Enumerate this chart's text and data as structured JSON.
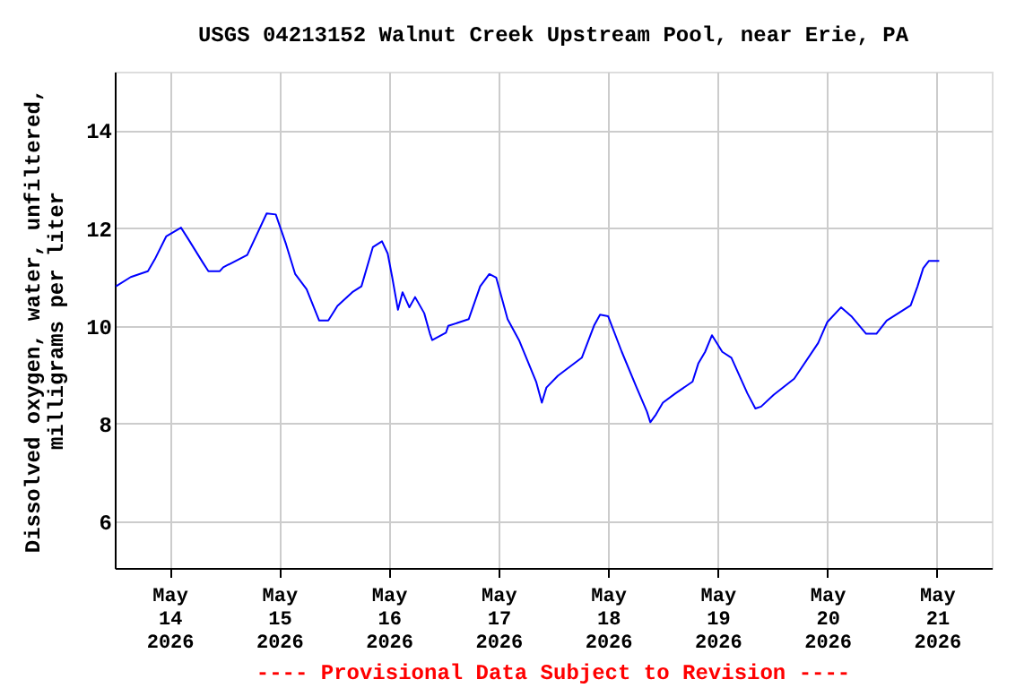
{
  "chart_data": {
    "type": "line",
    "title": "USGS 04213152 Walnut Creek Upstream Pool, near Erie, PA",
    "ylabel": "Dissolved oxygen, water, unfiltered,\nmilligrams per liter",
    "x": [
      "2026-05-13T12:15",
      "2026-05-13T15:30",
      "2026-05-13T19:15",
      "2026-05-13T20:45",
      "2026-05-13T23:15",
      "2026-05-14T02:30",
      "2026-05-14T04:00",
      "2026-05-14T07:15",
      "2026-05-14T08:30",
      "2026-05-14T11:00",
      "2026-05-14T11:45",
      "2026-05-14T17:00",
      "2026-05-14T21:15",
      "2026-05-14T23:15",
      "2026-05-15T01:30",
      "2026-05-15T03:30",
      "2026-05-15T06:00",
      "2026-05-15T08:45",
      "2026-05-15T10:45",
      "2026-05-15T12:45",
      "2026-05-15T16:00",
      "2026-05-15T18:00",
      "2026-05-15T20:30",
      "2026-05-15T22:30",
      "2026-05-15T23:45",
      "2026-05-16T00:45",
      "2026-05-16T02:00",
      "2026-05-16T03:00",
      "2026-05-16T04:30",
      "2026-05-16T05:45",
      "2026-05-16T07:45",
      "2026-05-16T09:00",
      "2026-05-16T09:30",
      "2026-05-16T12:30",
      "2026-05-16T13:00",
      "2026-05-16T17:30",
      "2026-05-16T20:00",
      "2026-05-16T22:00",
      "2026-05-16T23:30",
      "2026-05-17T02:00",
      "2026-05-17T04:30",
      "2026-05-17T08:15",
      "2026-05-17T09:30",
      "2026-05-17T10:30",
      "2026-05-17T13:00",
      "2026-05-17T18:15",
      "2026-05-17T21:00",
      "2026-05-17T22:15",
      "2026-05-18T00:00",
      "2026-05-18T03:00",
      "2026-05-18T06:15",
      "2026-05-18T08:30",
      "2026-05-18T09:15",
      "2026-05-18T10:30",
      "2026-05-18T12:00",
      "2026-05-18T14:45",
      "2026-05-18T18:30",
      "2026-05-18T19:45",
      "2026-05-18T21:15",
      "2026-05-18T22:45",
      "2026-05-19T01:00",
      "2026-05-19T03:00",
      "2026-05-19T06:30",
      "2026-05-19T08:15",
      "2026-05-19T09:30",
      "2026-05-19T12:15",
      "2026-05-19T16:45",
      "2026-05-19T22:00",
      "2026-05-20T00:00",
      "2026-05-20T03:00",
      "2026-05-20T05:15",
      "2026-05-20T08:30",
      "2026-05-20T10:45",
      "2026-05-20T13:00",
      "2026-05-20T18:15",
      "2026-05-20T19:45",
      "2026-05-20T21:00",
      "2026-05-20T22:15",
      "2026-05-21T00:30"
    ],
    "series": [
      {
        "color": "#0000ff",
        "values": [
          10.81,
          11.0,
          11.12,
          11.36,
          11.83,
          12.01,
          11.79,
          11.3,
          11.12,
          11.12,
          11.2,
          11.45,
          12.3,
          12.28,
          11.67,
          11.06,
          10.75,
          10.11,
          10.11,
          10.41,
          10.69,
          10.81,
          11.61,
          11.73,
          11.48,
          10.99,
          10.33,
          10.69,
          10.38,
          10.59,
          10.26,
          9.84,
          9.71,
          9.86,
          10.0,
          10.14,
          10.81,
          11.06,
          10.99,
          10.14,
          9.71,
          8.86,
          8.43,
          8.74,
          8.98,
          9.35,
          10.02,
          10.23,
          10.2,
          9.47,
          8.74,
          8.25,
          8.03,
          8.19,
          8.43,
          8.62,
          8.86,
          9.23,
          9.47,
          9.81,
          9.47,
          9.35,
          8.62,
          8.31,
          8.35,
          8.59,
          8.92,
          9.65,
          10.08,
          10.38,
          10.2,
          9.84,
          9.84,
          10.11,
          10.42,
          10.81,
          11.18,
          11.33,
          11.33
        ]
      }
    ],
    "xlim": [
      "2026-05-13T12:00",
      "2026-05-21T12:00"
    ],
    "xticks": [
      {
        "value": "2026-05-14T00:00",
        "label": "May\n14\n2026"
      },
      {
        "value": "2026-05-15T00:00",
        "label": "May\n15\n2026"
      },
      {
        "value": "2026-05-16T00:00",
        "label": "May\n16\n2026"
      },
      {
        "value": "2026-05-17T00:00",
        "label": "May\n17\n2026"
      },
      {
        "value": "2026-05-18T00:00",
        "label": "May\n18\n2026"
      },
      {
        "value": "2026-05-19T00:00",
        "label": "May\n19\n2026"
      },
      {
        "value": "2026-05-20T00:00",
        "label": "May\n20\n2026"
      },
      {
        "value": "2026-05-21T00:00",
        "label": "May\n21\n2026"
      }
    ],
    "ylim": [
      5.05,
      15.2
    ],
    "yticks": [
      6,
      8,
      10,
      12,
      14
    ],
    "grid": true,
    "annotations": [
      "---- Provisional Data Subject to Revision ----"
    ]
  }
}
